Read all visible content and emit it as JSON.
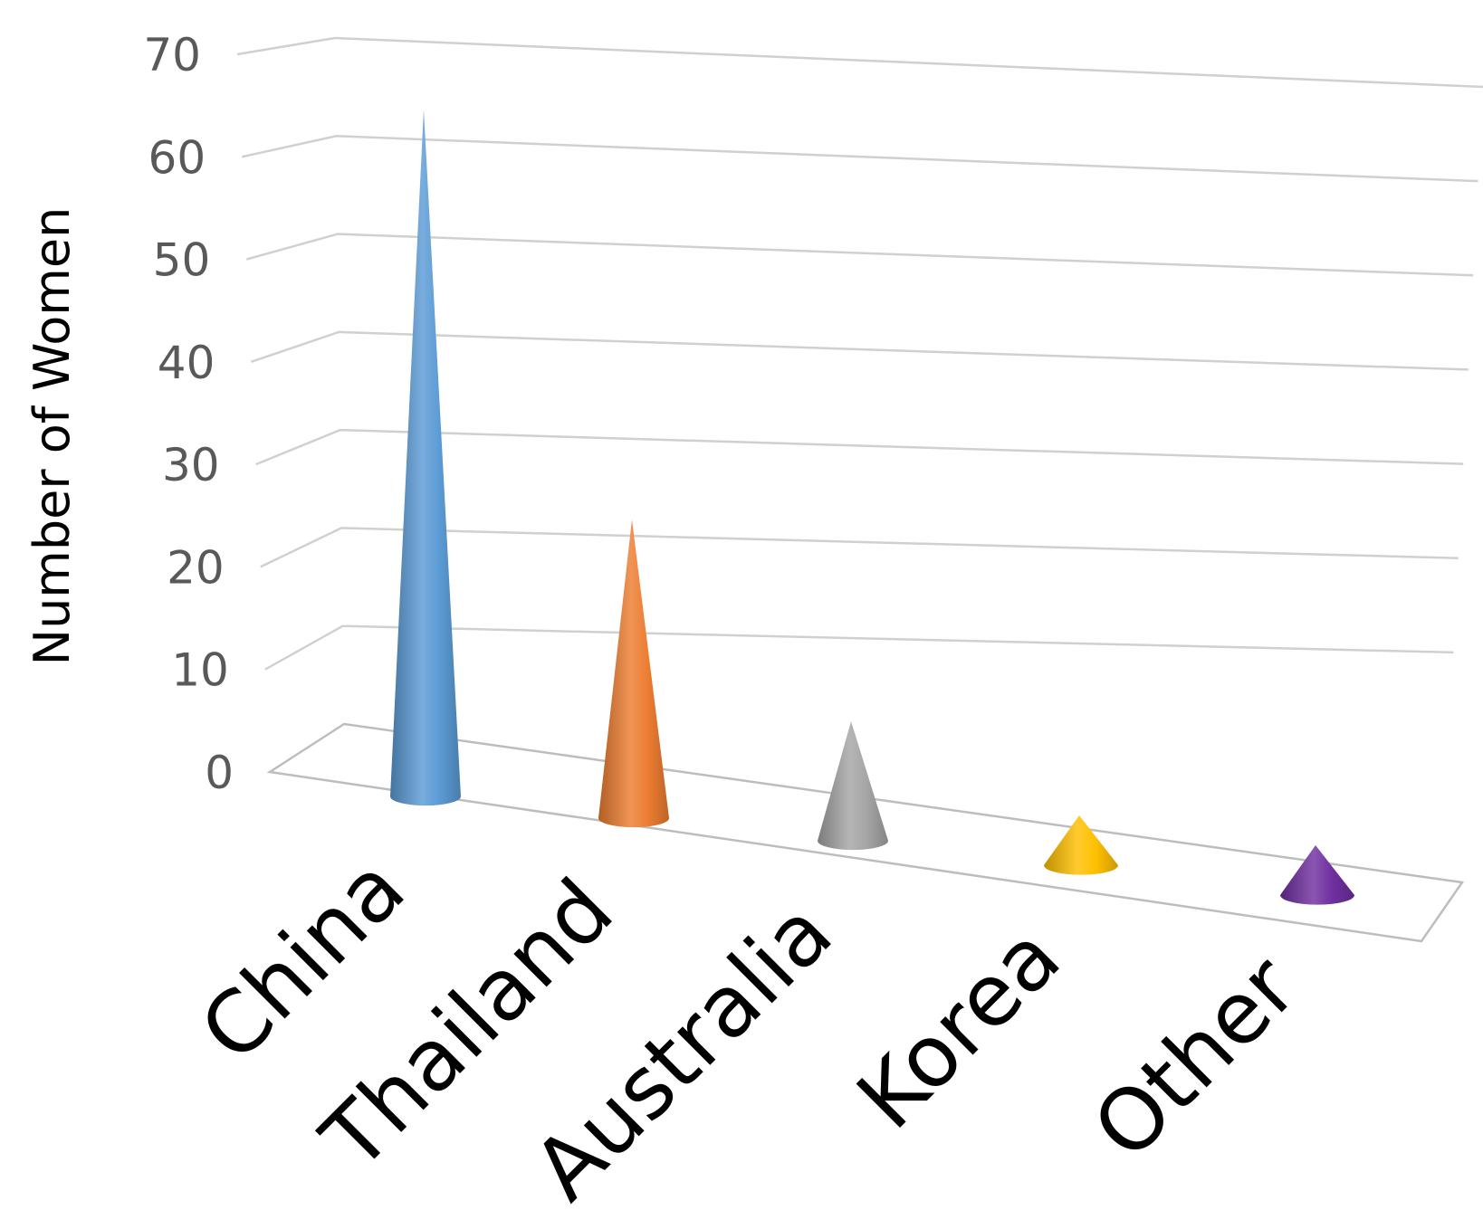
{
  "chart_data": {
    "type": "bar",
    "style": "3d-cone",
    "categories": [
      "China",
      "Thailand",
      "Australia",
      "Korea",
      "Other"
    ],
    "values": [
      69,
      30,
      12,
      5,
      5
    ],
    "colors": [
      "#5b9bd5",
      "#ed7d31",
      "#a5a5a5",
      "#ffc000",
      "#7030a0"
    ],
    "title": "",
    "xlabel": "",
    "ylabel": "Number of Women",
    "ylim": [
      0,
      70
    ],
    "yticks": [
      "0",
      "10",
      "20",
      "30",
      "40",
      "50",
      "60",
      "70"
    ],
    "grid": true,
    "legend": "none"
  }
}
